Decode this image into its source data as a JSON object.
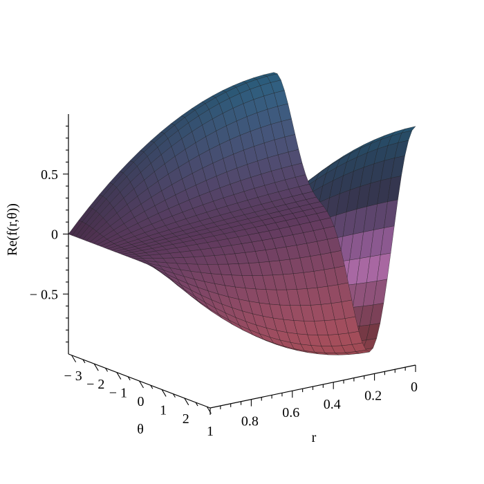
{
  "chart_data": {
    "type": "surface3d",
    "function_label": "Re(f(r,θ))",
    "axes": {
      "z": {
        "label": "Re(f(r,θ))",
        "range": [
          -1,
          1
        ],
        "ticks": [
          {
            "value": 0.5,
            "label": "0.5"
          },
          {
            "value": 0,
            "label": "0"
          },
          {
            "value": -0.5,
            "label": "− 0.5"
          }
        ]
      },
      "theta": {
        "label": "θ",
        "range": [
          -3.14159,
          3.14159
        ],
        "ticks": [
          {
            "value": -3,
            "label": "− 3"
          },
          {
            "value": -2,
            "label": "− 2"
          },
          {
            "value": -1,
            "label": "− 1"
          },
          {
            "value": 0,
            "label": "0"
          },
          {
            "value": 1,
            "label": "1"
          },
          {
            "value": 2,
            "label": "2"
          }
        ]
      },
      "r": {
        "label": "r",
        "range": [
          0,
          1
        ],
        "ticks": [
          {
            "value": 0.8,
            "label": "0.8"
          },
          {
            "value": 0.6,
            "label": "0.6"
          },
          {
            "value": 0.4,
            "label": "0.4"
          },
          {
            "value": 0.2,
            "label": "0.2"
          },
          {
            "value": 0,
            "label": "0"
          }
        ]
      }
    },
    "surface_samples": [
      {
        "r": 1,
        "theta": -3.14159,
        "value": 0
      },
      {
        "r": 0,
        "theta": -3.14159,
        "value": 0.82
      },
      {
        "r": 0,
        "theta": 0,
        "value": -0.95
      },
      {
        "r": 1,
        "theta": 3.14159,
        "value": -0.25
      },
      {
        "r": 0,
        "theta": 3.14159,
        "value": -0.85
      }
    ],
    "grid": false,
    "mesh_lines": true
  },
  "end_labels": {
    "theta_end": "1",
    "r_end": "1"
  }
}
